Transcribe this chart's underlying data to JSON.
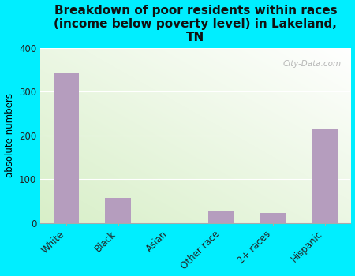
{
  "title": "Breakdown of poor residents within races\n(income below poverty level) in Lakeland,\nTN",
  "categories": [
    "White",
    "Black",
    "Asian",
    "Other race",
    "2+ races",
    "Hispanic"
  ],
  "values": [
    342,
    57,
    0,
    27,
    23,
    215
  ],
  "bar_color": "#b59dbe",
  "ylabel": "absolute numbers",
  "ylim": [
    0,
    400
  ],
  "yticks": [
    0,
    100,
    200,
    300,
    400
  ],
  "background_outer": "#00eeff",
  "background_inner_top_right": "#ffffff",
  "background_inner_bottom_left": "#d8efc8",
  "title_fontsize": 11,
  "watermark": "City-Data.com"
}
